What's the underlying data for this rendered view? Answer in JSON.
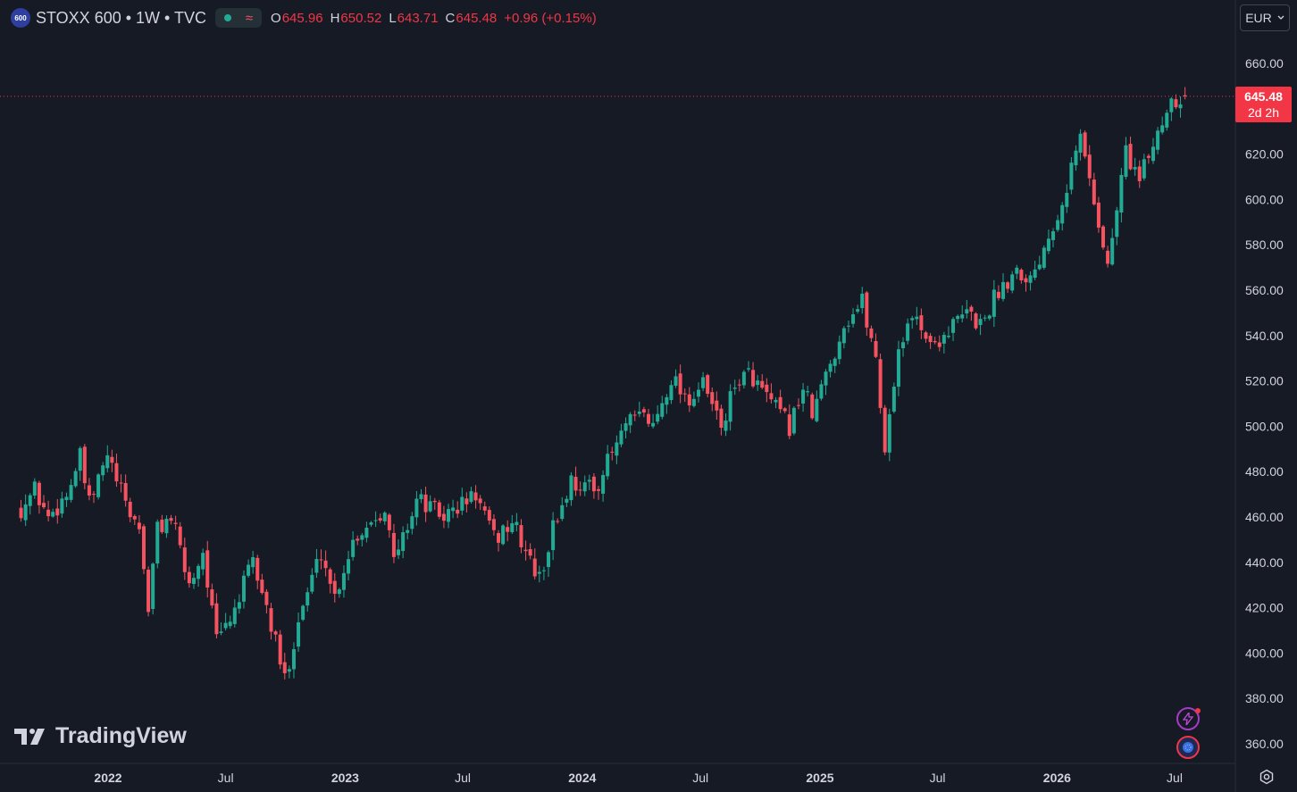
{
  "header": {
    "badge": "600",
    "symbol": "STOXX 600 • 1W • TVC",
    "ohlc": [
      {
        "label": "O",
        "value": "645.96"
      },
      {
        "label": "H",
        "value": "650.52"
      },
      {
        "label": "L",
        "value": "643.71"
      },
      {
        "label": "C",
        "value": "645.48"
      }
    ],
    "change": "+0.96 (+0.15%)"
  },
  "currency": "EUR",
  "price_tag": {
    "price": "645.48",
    "countdown": "2d 2h"
  },
  "branding": "TradingView",
  "icons": [
    "lightning-icon",
    "globe-icon",
    "gear-icon"
  ],
  "colors": {
    "up": "#22ab94",
    "down": "#f7525f",
    "background": "#161a25",
    "price_tag": "#f23645"
  },
  "chart_data": {
    "type": "candlestick",
    "interval": "1W",
    "ylim": [
      355,
      668
    ],
    "y_ticks": [
      "660.00",
      "620.00",
      "600.00",
      "580.00",
      "560.00",
      "540.00",
      "520.00",
      "500.00",
      "480.00",
      "460.00",
      "440.00",
      "420.00",
      "400.00",
      "380.00",
      "360.00"
    ],
    "x_ticks": [
      {
        "label": "2022",
        "date": "2022-01-01"
      },
      {
        "label": "Jul",
        "date": "2022-07-01"
      },
      {
        "label": "2023",
        "date": "2023-01-01"
      },
      {
        "label": "Jul",
        "date": "2023-07-01"
      },
      {
        "label": "2024",
        "date": "2024-01-01"
      },
      {
        "label": "Jul",
        "date": "2024-07-01"
      },
      {
        "label": "2025",
        "date": "2025-01-01"
      },
      {
        "label": "Jul",
        "date": "2025-07-01"
      },
      {
        "label": "2026",
        "date": "2026-01-01"
      },
      {
        "label": "Jul",
        "date": "2026-07-01"
      }
    ],
    "last_price": 645.48,
    "series_anchors": [
      [
        "2021-08-20",
        464
      ],
      [
        "2021-09-10",
        472
      ],
      [
        "2021-10-01",
        460
      ],
      [
        "2021-10-29",
        470
      ],
      [
        "2021-11-19",
        486
      ],
      [
        "2021-12-03",
        465
      ],
      [
        "2021-12-31",
        487
      ],
      [
        "2022-01-28",
        465
      ],
      [
        "2022-02-18",
        455
      ],
      [
        "2022-03-04",
        420
      ],
      [
        "2022-03-18",
        455
      ],
      [
        "2022-04-08",
        460
      ],
      [
        "2022-05-06",
        430
      ],
      [
        "2022-05-27",
        445
      ],
      [
        "2022-06-17",
        405
      ],
      [
        "2022-07-08",
        415
      ],
      [
        "2022-08-12",
        440
      ],
      [
        "2022-09-02",
        420
      ],
      [
        "2022-09-30",
        388
      ],
      [
        "2022-10-21",
        415
      ],
      [
        "2022-11-25",
        445
      ],
      [
        "2022-12-16",
        425
      ],
      [
        "2023-01-13",
        450
      ],
      [
        "2023-03-03",
        465
      ],
      [
        "2023-03-17",
        440
      ],
      [
        "2023-04-21",
        468
      ],
      [
        "2023-06-02",
        460
      ],
      [
        "2023-07-21",
        470
      ],
      [
        "2023-08-18",
        450
      ],
      [
        "2023-09-15",
        458
      ],
      [
        "2023-10-27",
        432
      ],
      [
        "2023-11-17",
        455
      ],
      [
        "2023-12-15",
        476
      ],
      [
        "2024-01-19",
        472
      ],
      [
        "2024-03-08",
        500
      ],
      [
        "2024-04-05",
        505
      ],
      [
        "2024-04-19",
        500
      ],
      [
        "2024-05-17",
        522
      ],
      [
        "2024-06-14",
        512
      ],
      [
        "2024-07-05",
        518
      ],
      [
        "2024-08-02",
        500
      ],
      [
        "2024-08-30",
        522
      ],
      [
        "2024-09-20",
        522
      ],
      [
        "2024-10-04",
        515
      ],
      [
        "2024-11-15",
        500
      ],
      [
        "2024-12-06",
        517
      ],
      [
        "2024-12-20",
        505
      ],
      [
        "2025-02-07",
        545
      ],
      [
        "2025-03-07",
        555
      ],
      [
        "2025-03-28",
        530
      ],
      [
        "2025-04-11",
        490
      ],
      [
        "2025-05-02",
        535
      ],
      [
        "2025-05-30",
        550
      ],
      [
        "2025-06-20",
        535
      ],
      [
        "2025-08-15",
        550
      ],
      [
        "2025-09-05",
        545
      ],
      [
        "2025-10-03",
        560
      ],
      [
        "2025-10-31",
        570
      ],
      [
        "2025-11-21",
        565
      ],
      [
        "2026-01-09",
        600
      ],
      [
        "2026-02-06",
        628
      ],
      [
        "2026-02-27",
        600
      ],
      [
        "2026-03-20",
        570
      ],
      [
        "2026-04-17",
        622
      ],
      [
        "2026-05-08",
        608
      ],
      [
        "2026-06-05",
        630
      ],
      [
        "2026-06-26",
        645
      ],
      [
        "2026-07-17",
        645.48
      ]
    ]
  }
}
